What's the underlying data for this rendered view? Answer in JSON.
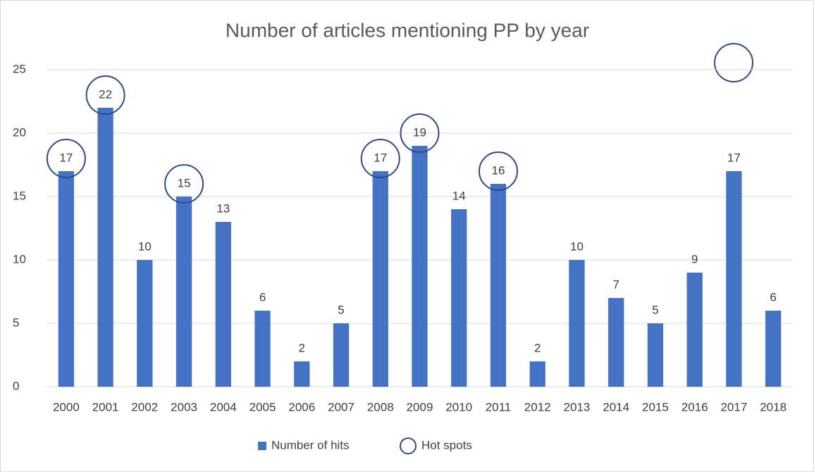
{
  "chart_data": {
    "type": "bar",
    "title": "Number of articles mentioning PP by year",
    "categories": [
      "2000",
      "2001",
      "2002",
      "2003",
      "2004",
      "2005",
      "2006",
      "2007",
      "2008",
      "2009",
      "2010",
      "2011",
      "2012",
      "2013",
      "2014",
      "2015",
      "2016",
      "2017",
      "2018"
    ],
    "series": [
      {
        "name": "Number of hits",
        "color": "#4472c4",
        "values": [
          17,
          22,
          10,
          15,
          13,
          6,
          2,
          5,
          17,
          19,
          14,
          16,
          2,
          10,
          7,
          5,
          9,
          17,
          6
        ]
      },
      {
        "name": "Hot spots",
        "color": "#2f4a8a",
        "values": [
          17,
          22,
          null,
          15,
          null,
          null,
          null,
          null,
          17,
          19,
          null,
          16,
          null,
          null,
          null,
          null,
          null,
          null,
          null
        ]
      }
    ],
    "ylim": [
      0,
      25
    ],
    "yticks": [
      0,
      5,
      10,
      15,
      20,
      25
    ],
    "grid": true,
    "legend": "bottom"
  }
}
